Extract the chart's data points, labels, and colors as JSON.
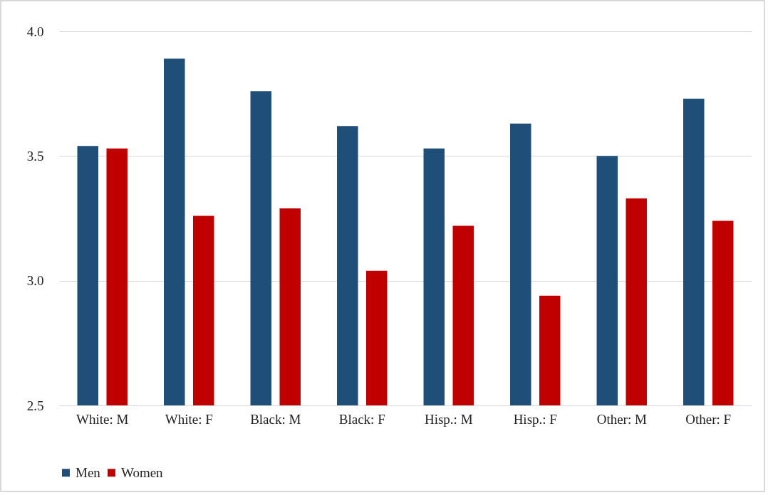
{
  "chart_data": {
    "type": "bar",
    "categories": [
      "White: M",
      "White: F",
      "Black: M",
      "Black: F",
      "Hisp.: M",
      "Hisp.: F",
      "Other: M",
      "Other: F"
    ],
    "series": [
      {
        "name": "Men",
        "color": "#1f4e79",
        "values": [
          3.54,
          3.89,
          3.76,
          3.62,
          3.53,
          3.63,
          3.5,
          3.73
        ]
      },
      {
        "name": "Women",
        "color": "#c00000",
        "values": [
          3.53,
          3.26,
          3.29,
          3.04,
          3.22,
          2.94,
          3.33,
          3.24
        ]
      }
    ],
    "ylim": [
      2.5,
      4.0
    ],
    "yticks": [
      {
        "value": 2.5,
        "label": "2.5"
      },
      {
        "value": 3,
        "label": "3.0"
      },
      {
        "value": 3.5,
        "label": "3.5"
      },
      {
        "value": 4,
        "label": "4.0"
      }
    ],
    "grid": "y",
    "legend": "bottom"
  }
}
